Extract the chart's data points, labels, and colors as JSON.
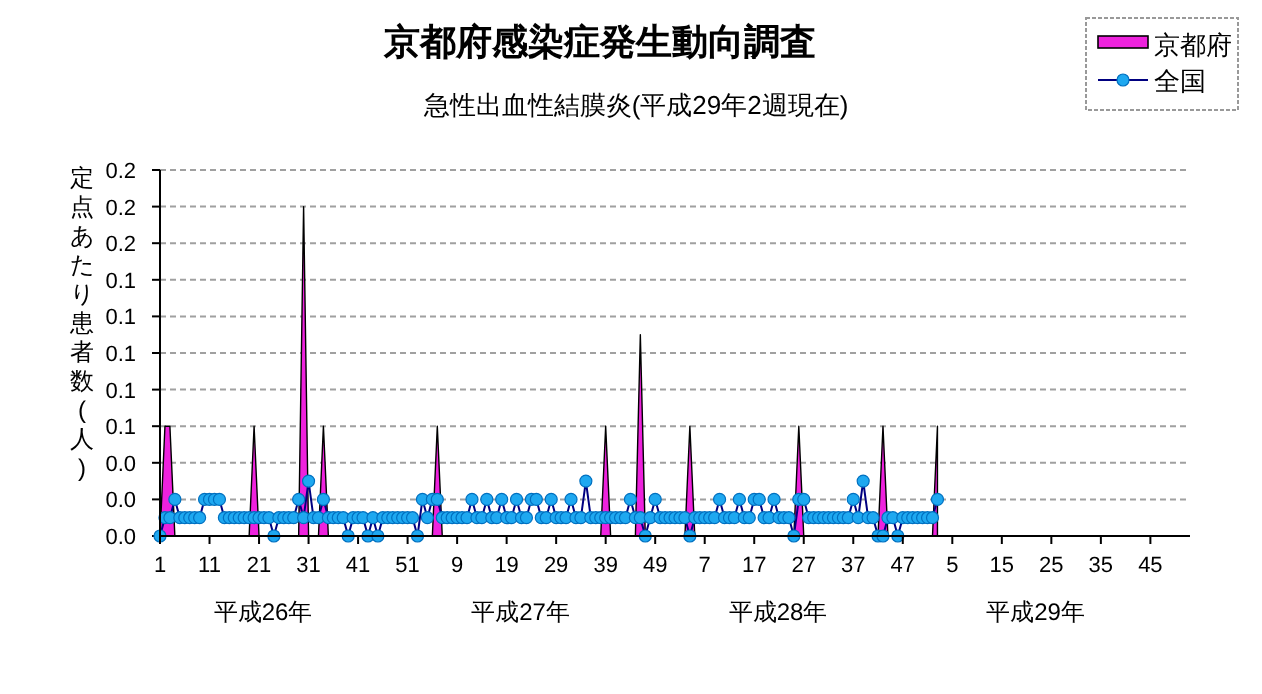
{
  "chart_data": {
    "type": "line",
    "title": "京都府感染症発生動向調査",
    "subtitle": "急性出血性結膜炎(平成29年2週現在)",
    "ylabel": "定点あたり患者数(人)",
    "annotations": [
      "平成26年",
      "平成27年",
      "平成28年",
      "平成29年"
    ],
    "categories": [
      "1",
      null,
      null,
      null,
      null,
      null,
      null,
      null,
      null,
      null,
      "11",
      null,
      null,
      null,
      null,
      null,
      null,
      null,
      null,
      null,
      "21",
      null,
      null,
      null,
      null,
      null,
      null,
      null,
      null,
      null,
      "31",
      null,
      null,
      null,
      null,
      null,
      null,
      null,
      null,
      null,
      "41",
      null,
      null,
      null,
      null,
      null,
      null,
      null,
      null,
      null,
      "51",
      null,
      null,
      null,
      null,
      null,
      null,
      null,
      null,
      null,
      "9",
      null,
      null,
      null,
      null,
      null,
      null,
      null,
      null,
      null,
      "19",
      null,
      null,
      null,
      null,
      null,
      null,
      null,
      null,
      null,
      "29",
      null,
      null,
      null,
      null,
      null,
      null,
      null,
      null,
      null,
      "39",
      null,
      null,
      null,
      null,
      null,
      null,
      null,
      null,
      null,
      "49",
      null,
      null,
      null,
      null,
      null,
      null,
      null,
      null,
      null,
      "7",
      null,
      null,
      null,
      null,
      null,
      null,
      null,
      null,
      null,
      "17",
      null,
      null,
      null,
      null,
      null,
      null,
      null,
      null,
      null,
      "27",
      null,
      null,
      null,
      null,
      null,
      null,
      null,
      null,
      null,
      "37",
      null,
      null,
      null,
      null,
      null,
      null,
      null,
      null,
      null,
      "47",
      null,
      null,
      null,
      null,
      null,
      null,
      null,
      null,
      null,
      "5",
      null,
      null,
      null,
      null,
      null,
      null,
      null,
      null,
      null,
      "15",
      null,
      null,
      null,
      null,
      null,
      null,
      null,
      null,
      null,
      "25",
      null,
      null,
      null,
      null,
      null,
      null,
      null,
      null,
      null,
      "35",
      null,
      null,
      null,
      null,
      null,
      null,
      null,
      null,
      null,
      "45",
      null,
      null,
      null,
      null,
      null,
      null,
      null
    ],
    "series": [
      {
        "name": "京都府",
        "type": "area",
        "color": "#ee22dd",
        "values": [
          0,
          0.06,
          0.06,
          0,
          0,
          0,
          0,
          0,
          0,
          0,
          0,
          0,
          0,
          0,
          0,
          0,
          0,
          0,
          0,
          0.06,
          0,
          0,
          0,
          0,
          0,
          0,
          0,
          0,
          0,
          0.18,
          0,
          0,
          0,
          0.06,
          0,
          0,
          0,
          0,
          0,
          0,
          0,
          0,
          0,
          0,
          0,
          0,
          0,
          0,
          0,
          0,
          0,
          0,
          0,
          0,
          0,
          0,
          0.06,
          0,
          0,
          0,
          0,
          0,
          0,
          0,
          0,
          0,
          0,
          0,
          0,
          0,
          0,
          0,
          0,
          0,
          0,
          0,
          0,
          0,
          0,
          0,
          0,
          0,
          0,
          0,
          0,
          0,
          0,
          0,
          0,
          0,
          0.06,
          0,
          0,
          0,
          0,
          0,
          0,
          0.11,
          0,
          0,
          0,
          0,
          0,
          0,
          0,
          0,
          0,
          0.06,
          0,
          0,
          0,
          0,
          0,
          0,
          0,
          0,
          0,
          0,
          0,
          0,
          0,
          0,
          0,
          0,
          0,
          0,
          0,
          0,
          0,
          0.06,
          0,
          0,
          0,
          0,
          0,
          0,
          0,
          0,
          0,
          0,
          0,
          0,
          0,
          0,
          0,
          0,
          0.06,
          0,
          0,
          0,
          0,
          0,
          0,
          0,
          0,
          0,
          0,
          0.06,
          null,
          null,
          null,
          null,
          null,
          null,
          null,
          null,
          null,
          null,
          null,
          null,
          null,
          null,
          null,
          null,
          null,
          null,
          null,
          null,
          null,
          null,
          null,
          null,
          null,
          null,
          null,
          null,
          null,
          null,
          null,
          null,
          null,
          null,
          null,
          null,
          null,
          null,
          null,
          null,
          null,
          null,
          null,
          null,
          null,
          null,
          null,
          null,
          null,
          null
        ]
      },
      {
        "name": "全国",
        "marker": "circle",
        "color": "#1ea8f0",
        "values": [
          0,
          0.01,
          0.01,
          0.02,
          0.01,
          0.01,
          0.01,
          0.01,
          0.01,
          0.02,
          0.02,
          0.02,
          0.02,
          0.01,
          0.01,
          0.01,
          0.01,
          0.01,
          0.01,
          0.01,
          0.01,
          0.01,
          0.01,
          0,
          0.01,
          0.01,
          0.01,
          0.01,
          0.02,
          0.01,
          0.03,
          0.01,
          0.01,
          0.02,
          0.01,
          0.01,
          0.01,
          0.01,
          0,
          0.01,
          0.01,
          0.01,
          0,
          0.01,
          0,
          0.01,
          0.01,
          0.01,
          0.01,
          0.01,
          0.01,
          0.01,
          0,
          0.02,
          0.01,
          0.02,
          0.02,
          0.01,
          0.01,
          0.01,
          0.01,
          0.01,
          0.01,
          0.02,
          0.01,
          0.01,
          0.02,
          0.01,
          0.01,
          0.02,
          0.01,
          0.01,
          0.02,
          0.01,
          0.01,
          0.02,
          0.02,
          0.01,
          0.01,
          0.02,
          0.01,
          0.01,
          0.01,
          0.02,
          0.01,
          0.01,
          0.03,
          0.01,
          0.01,
          0.01,
          0.01,
          0.01,
          0.01,
          0.01,
          0.01,
          0.02,
          0.01,
          0.01,
          0,
          0.01,
          0.02,
          0.01,
          0.01,
          0.01,
          0.01,
          0.01,
          0.01,
          0,
          0.01,
          0.01,
          0.01,
          0.01,
          0.01,
          0.02,
          0.01,
          0.01,
          0.01,
          0.02,
          0.01,
          0.01,
          0.02,
          0.02,
          0.01,
          0.01,
          0.02,
          0.01,
          0.01,
          0.01,
          0,
          0.02,
          0.02,
          0.01,
          0.01,
          0.01,
          0.01,
          0.01,
          0.01,
          0.01,
          0.01,
          0.01,
          0.02,
          0.01,
          0.03,
          0.01,
          0.01,
          0,
          0,
          0.01,
          0.01,
          0,
          0.01,
          0.01,
          0.01,
          0.01,
          0.01,
          0.01,
          0.01,
          0.02,
          null,
          null,
          null,
          null,
          null,
          null,
          null,
          null,
          null,
          null,
          null,
          null,
          null,
          null,
          null,
          null,
          null,
          null,
          null,
          null,
          null,
          null,
          null,
          null,
          null,
          null,
          null,
          null,
          null,
          null,
          null,
          null,
          null,
          null,
          null,
          null,
          null,
          null,
          null,
          null,
          null,
          null,
          null,
          null,
          null,
          null,
          null,
          null,
          null,
          null
        ]
      }
    ],
    "ylim": [
      0,
      0.2
    ],
    "yticks": [
      {
        "value": 0,
        "label": "0.0"
      },
      {
        "value": 0.02,
        "label": "0.0"
      },
      {
        "value": 0.04,
        "label": "0.0"
      },
      {
        "value": 0.06,
        "label": "0.1"
      },
      {
        "value": 0.08,
        "label": "0.1"
      },
      {
        "value": 0.1,
        "label": "0.1"
      },
      {
        "value": 0.12,
        "label": "0.1"
      },
      {
        "value": 0.14,
        "label": "0.1"
      },
      {
        "value": 0.16,
        "label": "0.2"
      },
      {
        "value": 0.18,
        "label": "0.2"
      },
      {
        "value": 0.2,
        "label": "0.2"
      }
    ],
    "grid": "y",
    "legend": "top right"
  }
}
